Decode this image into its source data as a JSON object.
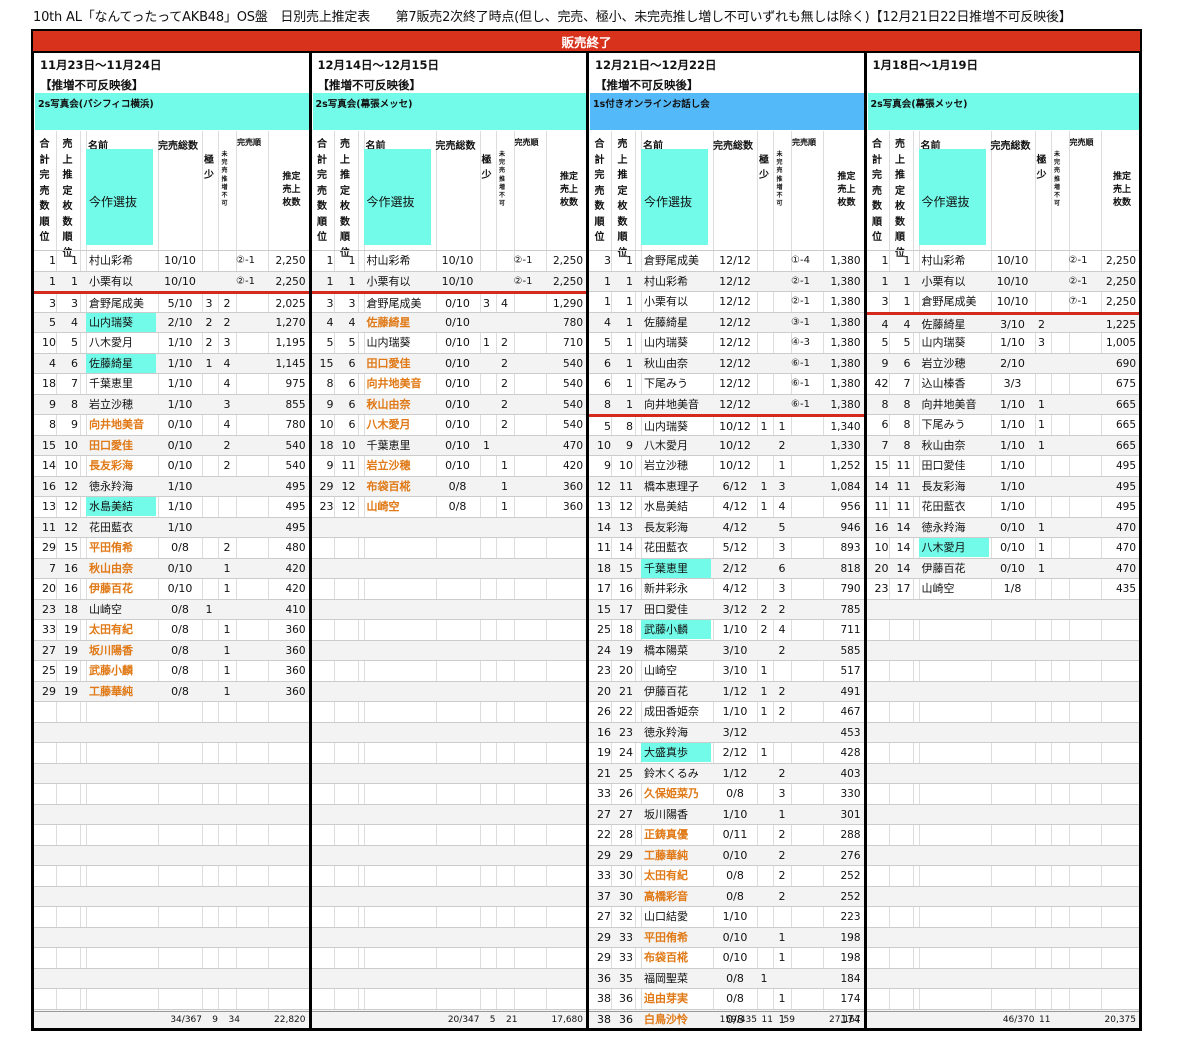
{
  "title": "10th AL「なんてったってAKB48」OS盤　日別売上推定表　　第7販売2次終了時点(但し、完売、極小、未完売推し増し不可いずれも無しは除く)【12月21日22日推増不可反映後】",
  "banner": "販売終了",
  "headers": {
    "total_rank": [
      "合",
      "計",
      "完",
      "売",
      "数",
      "順",
      "位"
    ],
    "est_rank": [
      "売",
      "上",
      "推",
      "定",
      "枚",
      "数",
      "順",
      "位"
    ],
    "name": "名前",
    "selection": "今作選抜",
    "sold_total": "完売総数",
    "kyoku": [
      "極",
      "少"
    ],
    "mikanbai": [
      "未",
      "完",
      "売",
      "推",
      "増",
      "不",
      "可"
    ],
    "order": "完売順",
    "est_sales": [
      "推定",
      "売上",
      "枚数"
    ]
  },
  "panels": [
    {
      "date": "11月23日〜11月24日",
      "note": "【推増不可反映後】",
      "event": "2s写真会(パシフィコ横浜)",
      "event_color": "#72fbe8",
      "rows": [
        [
          "1",
          "1",
          "村山彩希",
          "10/10",
          "",
          "",
          "②-1",
          "2,250",
          "plain"
        ],
        [
          "1",
          "1",
          "小栗有以",
          "10/10",
          "",
          "",
          "②-1",
          "2,250",
          "plain"
        ],
        [
          "3",
          "3",
          "倉野尾成美",
          "5/10",
          "3",
          "2",
          "",
          "2,025",
          "plain"
        ],
        [
          "5",
          "4",
          "山内瑞葵",
          "2/10",
          "2",
          "2",
          "",
          "1,270",
          "cy"
        ],
        [
          "10",
          "5",
          "八木愛月",
          "1/10",
          "2",
          "3",
          "",
          "1,195",
          "plain"
        ],
        [
          "4",
          "6",
          "佐藤綺星",
          "1/10",
          "1",
          "4",
          "",
          "1,145",
          "cy"
        ],
        [
          "18",
          "7",
          "千葉恵里",
          "1/10",
          "",
          "4",
          "",
          "975",
          "plain"
        ],
        [
          "9",
          "8",
          "岩立沙穂",
          "1/10",
          "",
          "3",
          "",
          "855",
          "plain"
        ],
        [
          "8",
          "9",
          "向井地美音",
          "0/10",
          "",
          "4",
          "",
          "780",
          "or"
        ],
        [
          "15",
          "10",
          "田口愛佳",
          "0/10",
          "",
          "2",
          "",
          "540",
          "or"
        ],
        [
          "14",
          "10",
          "長友彩海",
          "0/10",
          "",
          "2",
          "",
          "540",
          "or"
        ],
        [
          "16",
          "12",
          "徳永羚海",
          "1/10",
          "",
          "",
          "",
          "495",
          "plain"
        ],
        [
          "13",
          "12",
          "水島美結",
          "1/10",
          "",
          "",
          "",
          "495",
          "cy"
        ],
        [
          "11",
          "12",
          "花田藍衣",
          "1/10",
          "",
          "",
          "",
          "495",
          "plain"
        ],
        [
          "29",
          "15",
          "平田侑希",
          "0/8",
          "",
          "2",
          "",
          "480",
          "or"
        ],
        [
          "7",
          "16",
          "秋山由奈",
          "0/10",
          "",
          "1",
          "",
          "420",
          "or"
        ],
        [
          "20",
          "16",
          "伊藤百花",
          "0/10",
          "",
          "1",
          "",
          "420",
          "or"
        ],
        [
          "23",
          "18",
          "山崎空",
          "0/8",
          "1",
          "",
          "",
          "410",
          "plain"
        ],
        [
          "33",
          "19",
          "太田有紀",
          "0/8",
          "",
          "1",
          "",
          "360",
          "or"
        ],
        [
          "27",
          "19",
          "坂川陽香",
          "0/8",
          "",
          "1",
          "",
          "360",
          "or"
        ],
        [
          "25",
          "19",
          "武藤小麟",
          "0/8",
          "",
          "1",
          "",
          "360",
          "or"
        ],
        [
          "29",
          "19",
          "工藤華純",
          "0/8",
          "",
          "1",
          "",
          "360",
          "or"
        ]
      ],
      "red_after": [
        2
      ],
      "total": [
        "34/367",
        "9",
        "34",
        "22,820"
      ]
    },
    {
      "date": "12月14日〜12月15日",
      "note": "【推増不可反映後】",
      "event": "2s写真会(幕張メッセ)",
      "event_color": "#72fbe8",
      "rows": [
        [
          "1",
          "1",
          "村山彩希",
          "10/10",
          "",
          "",
          "②-1",
          "2,250",
          "plain"
        ],
        [
          "1",
          "1",
          "小栗有以",
          "10/10",
          "",
          "",
          "②-1",
          "2,250",
          "plain"
        ],
        [
          "3",
          "3",
          "倉野尾成美",
          "0/10",
          "3",
          "4",
          "",
          "1,290",
          "plain"
        ],
        [
          "4",
          "4",
          "佐藤綺星",
          "0/10",
          "",
          "",
          "",
          "780",
          "or"
        ],
        [
          "5",
          "5",
          "山内瑞葵",
          "0/10",
          "1",
          "2",
          "",
          "710",
          "plain"
        ],
        [
          "15",
          "6",
          "田口愛佳",
          "0/10",
          "",
          "2",
          "",
          "540",
          "or"
        ],
        [
          "8",
          "6",
          "向井地美音",
          "0/10",
          "",
          "2",
          "",
          "540",
          "or"
        ],
        [
          "9",
          "6",
          "秋山由奈",
          "0/10",
          "",
          "2",
          "",
          "540",
          "or"
        ],
        [
          "10",
          "6",
          "八木愛月",
          "0/10",
          "",
          "2",
          "",
          "540",
          "or"
        ],
        [
          "18",
          "10",
          "千葉恵里",
          "0/10",
          "1",
          "",
          "",
          "470",
          "plain"
        ],
        [
          "9",
          "11",
          "岩立沙穂",
          "0/10",
          "",
          "1",
          "",
          "420",
          "or"
        ],
        [
          "29",
          "12",
          "布袋百椛",
          "0/8",
          "",
          "1",
          "",
          "360",
          "or"
        ],
        [
          "23",
          "12",
          "山崎空",
          "0/8",
          "",
          "1",
          "",
          "360",
          "or"
        ]
      ],
      "red_after": [
        2
      ],
      "total": [
        "20/347",
        "5",
        "21",
        "17,680"
      ]
    },
    {
      "date": "12月21日〜12月22日",
      "note": "【推増不可反映後】",
      "event": "1s付きオンラインお話し会",
      "event_color": "#54b9f9",
      "rows": [
        [
          "3",
          "1",
          "倉野尾成美",
          "12/12",
          "",
          "",
          "①-4",
          "1,380",
          "plain"
        ],
        [
          "1",
          "1",
          "村山彩希",
          "12/12",
          "",
          "",
          "②-1",
          "1,380",
          "plain"
        ],
        [
          "1",
          "1",
          "小栗有以",
          "12/12",
          "",
          "",
          "②-1",
          "1,380",
          "plain"
        ],
        [
          "4",
          "1",
          "佐藤綺星",
          "12/12",
          "",
          "",
          "③-1",
          "1,380",
          "plain"
        ],
        [
          "5",
          "1",
          "山内瑞葵",
          "12/12",
          "",
          "",
          "④-3",
          "1,380",
          "plain"
        ],
        [
          "6",
          "1",
          "秋山由奈",
          "12/12",
          "",
          "",
          "⑥-1",
          "1,380",
          "plain"
        ],
        [
          "6",
          "1",
          "下尾みう",
          "12/12",
          "",
          "",
          "⑥-1",
          "1,380",
          "plain"
        ],
        [
          "8",
          "1",
          "向井地美音",
          "12/12",
          "",
          "",
          "⑥-1",
          "1,380",
          "plain"
        ],
        [
          "5",
          "8",
          "山内瑞葵",
          "10/12",
          "1",
          "1",
          "",
          "1,340",
          "plain"
        ],
        [
          "10",
          "9",
          "八木愛月",
          "10/12",
          "",
          "2",
          "",
          "1,330",
          "plain"
        ],
        [
          "9",
          "10",
          "岩立沙穂",
          "10/12",
          "",
          "1",
          "",
          "1,252",
          "plain"
        ],
        [
          "12",
          "11",
          "橋本恵理子",
          "6/12",
          "1",
          "3",
          "",
          "1,084",
          "plain"
        ],
        [
          "13",
          "12",
          "水島美結",
          "4/12",
          "1",
          "4",
          "",
          "956",
          "plain"
        ],
        [
          "14",
          "13",
          "長友彩海",
          "4/12",
          "",
          "5",
          "",
          "946",
          "plain"
        ],
        [
          "11",
          "14",
          "花田藍衣",
          "5/12",
          "",
          "3",
          "",
          "893",
          "plain"
        ],
        [
          "18",
          "15",
          "千葉恵里",
          "2/12",
          "",
          "6",
          "",
          "818",
          "cy"
        ],
        [
          "17",
          "16",
          "新井彩永",
          "4/12",
          "",
          "3",
          "",
          "790",
          "plain"
        ],
        [
          "15",
          "17",
          "田口愛佳",
          "3/12",
          "2",
          "2",
          "",
          "785",
          "plain"
        ],
        [
          "25",
          "18",
          "武藤小麟",
          "1/10",
          "2",
          "4",
          "",
          "711",
          "cy"
        ],
        [
          "24",
          "19",
          "橋本陽菜",
          "3/10",
          "",
          "2",
          "",
          "585",
          "plain"
        ],
        [
          "23",
          "20",
          "山崎空",
          "3/10",
          "1",
          "",
          "",
          "517",
          "plain"
        ],
        [
          "20",
          "21",
          "伊藤百花",
          "1/12",
          "1",
          "2",
          "",
          "491",
          "plain"
        ],
        [
          "26",
          "22",
          "成田香姫奈",
          "1/10",
          "1",
          "2",
          "",
          "467",
          "plain"
        ],
        [
          "16",
          "23",
          "徳永羚海",
          "3/12",
          "",
          "",
          "",
          "453",
          "plain"
        ],
        [
          "19",
          "24",
          "大盛真歩",
          "2/12",
          "1",
          "",
          "",
          "428",
          "cy"
        ],
        [
          "21",
          "25",
          "鈴木くるみ",
          "1/12",
          "",
          "2",
          "",
          "403",
          "plain"
        ],
        [
          "33",
          "26",
          "久保姫菜乃",
          "0/8",
          "",
          "3",
          "",
          "330",
          "or"
        ],
        [
          "27",
          "27",
          "坂川陽香",
          "1/10",
          "",
          "1",
          "",
          "301",
          "plain"
        ],
        [
          "22",
          "28",
          "正鋳真優",
          "0/11",
          "",
          "2",
          "",
          "288",
          "or"
        ],
        [
          "29",
          "29",
          "工藤華純",
          "0/10",
          "",
          "2",
          "",
          "276",
          "or"
        ],
        [
          "33",
          "30",
          "太田有紀",
          "0/8",
          "",
          "2",
          "",
          "252",
          "or"
        ],
        [
          "37",
          "30",
          "高橋彩音",
          "0/8",
          "",
          "2",
          "",
          "252",
          "or"
        ],
        [
          "27",
          "32",
          "山口結愛",
          "1/10",
          "",
          "",
          "",
          "223",
          "plain"
        ],
        [
          "29",
          "33",
          "平田侑希",
          "0/10",
          "",
          "1",
          "",
          "198",
          "or"
        ],
        [
          "29",
          "33",
          "布袋百椛",
          "0/10",
          "",
          "1",
          "",
          "198",
          "or"
        ],
        [
          "36",
          "35",
          "福岡聖菜",
          "0/8",
          "1",
          "",
          "",
          "184",
          "plain"
        ],
        [
          "38",
          "36",
          "迫由芽実",
          "0/8",
          "",
          "1",
          "",
          "174",
          "or"
        ],
        [
          "38",
          "36",
          "白鳥沙怜",
          "0/8",
          "",
          "1",
          "",
          "174",
          "or"
        ]
      ],
      "red_after": [
        8
      ],
      "total": [
        "159/435",
        "11",
        "59",
        "27,167"
      ]
    },
    {
      "date": "1月18日〜1月19日",
      "note": "",
      "event": "2s写真会(幕張メッセ)",
      "event_color": "#72fbe8",
      "rows": [
        [
          "1",
          "1",
          "村山彩希",
          "10/10",
          "",
          "",
          "②-1",
          "2,250",
          "plain"
        ],
        [
          "1",
          "1",
          "小栗有以",
          "10/10",
          "",
          "",
          "②-1",
          "2,250",
          "plain"
        ],
        [
          "3",
          "1",
          "倉野尾成美",
          "10/10",
          "",
          "",
          "⑦-1",
          "2,250",
          "plain"
        ],
        [
          "4",
          "4",
          "佐藤綺星",
          "3/10",
          "2",
          "",
          "",
          "1,225",
          "plain"
        ],
        [
          "5",
          "5",
          "山内瑞葵",
          "1/10",
          "3",
          "",
          "",
          "1,005",
          "plain"
        ],
        [
          "9",
          "6",
          "岩立沙穂",
          "2/10",
          "",
          "",
          "",
          "690",
          "plain"
        ],
        [
          "42",
          "7",
          "込山榛香",
          "3/3",
          "",
          "",
          "",
          "675",
          "plain"
        ],
        [
          "8",
          "8",
          "向井地美音",
          "1/10",
          "1",
          "",
          "",
          "665",
          "plain"
        ],
        [
          "6",
          "8",
          "下尾みう",
          "1/10",
          "1",
          "",
          "",
          "665",
          "plain"
        ],
        [
          "7",
          "8",
          "秋山由奈",
          "1/10",
          "1",
          "",
          "",
          "665",
          "plain"
        ],
        [
          "15",
          "11",
          "田口愛佳",
          "1/10",
          "",
          "",
          "",
          "495",
          "plain"
        ],
        [
          "14",
          "11",
          "長友彩海",
          "1/10",
          "",
          "",
          "",
          "495",
          "plain"
        ],
        [
          "11",
          "11",
          "花田藍衣",
          "1/10",
          "",
          "",
          "",
          "495",
          "plain"
        ],
        [
          "16",
          "14",
          "徳永羚海",
          "0/10",
          "1",
          "",
          "",
          "470",
          "plain"
        ],
        [
          "10",
          "14",
          "八木愛月",
          "0/10",
          "1",
          "",
          "",
          "470",
          "cy"
        ],
        [
          "20",
          "14",
          "伊藤百花",
          "0/10",
          "1",
          "",
          "",
          "470",
          "plain"
        ],
        [
          "23",
          "17",
          "山崎空",
          "1/8",
          "",
          "",
          "",
          "435",
          "plain"
        ]
      ],
      "red_after": [
        3
      ],
      "total": [
        "46/370",
        "11",
        "",
        "20,375"
      ]
    }
  ]
}
